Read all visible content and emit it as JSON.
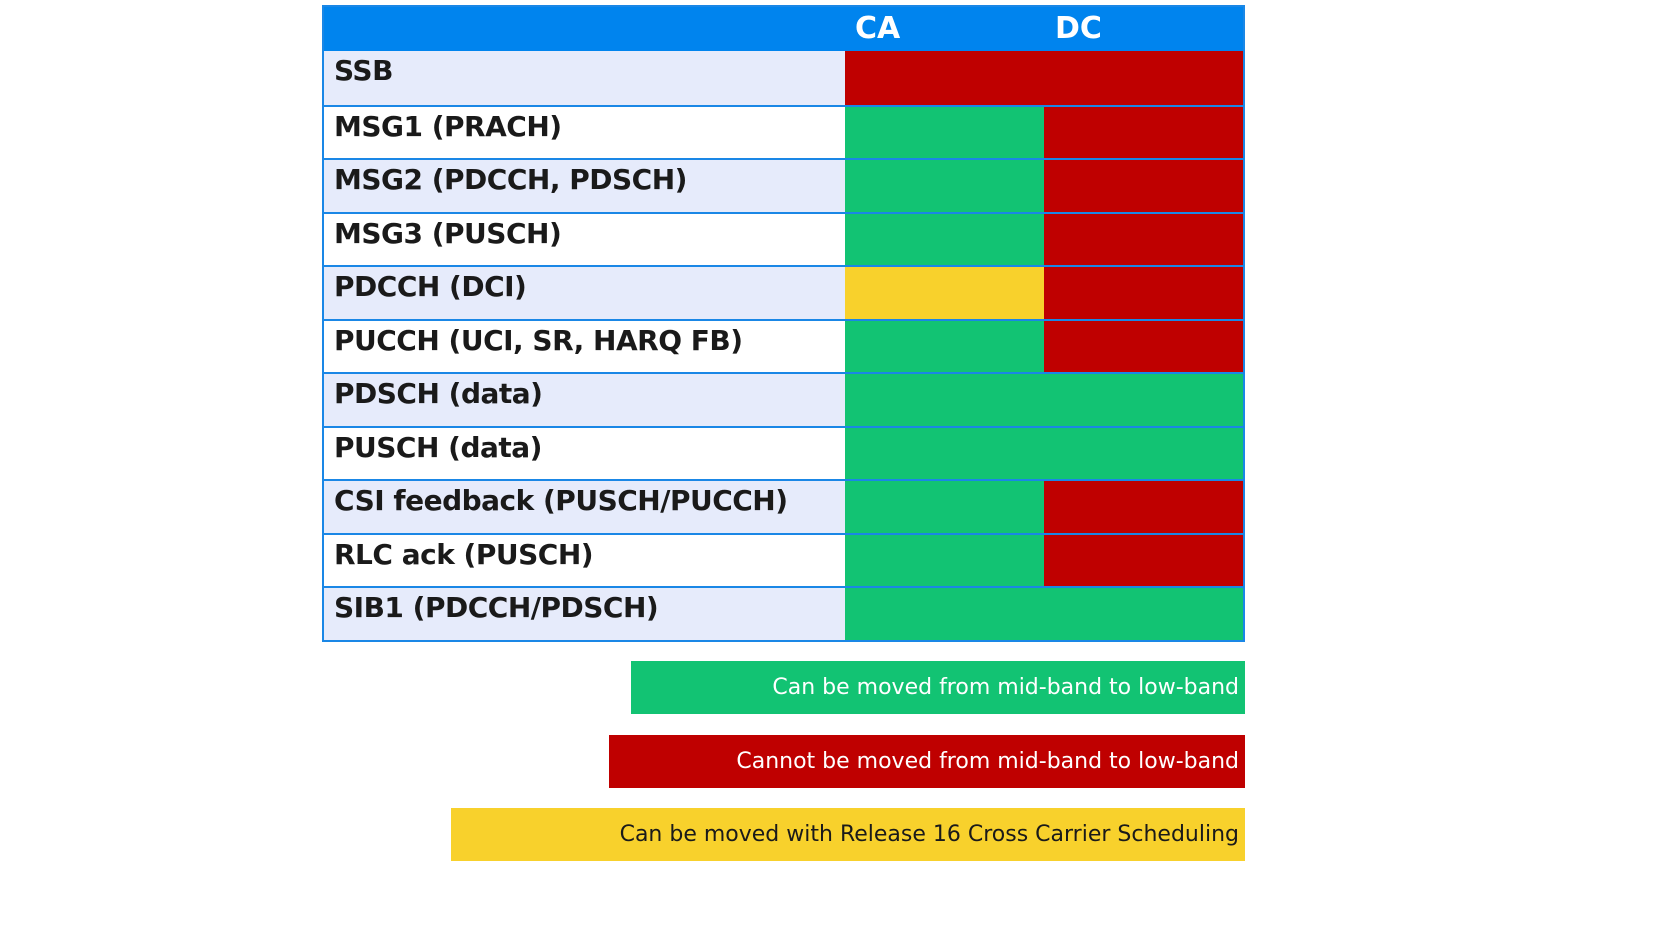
{
  "colors": {
    "header": "#0084ee",
    "border": "#1a87e6",
    "green": "#12c373",
    "red": "#bf0000",
    "yellow": "#f8d12c",
    "row_alt": "#e6ebfb"
  },
  "header": {
    "col_ca": "CA",
    "col_dc": "DC"
  },
  "rows": [
    {
      "label": "SSB",
      "ca": "red",
      "dc": "red",
      "merged": true
    },
    {
      "label": "MSG1 (PRACH)",
      "ca": "green",
      "dc": "red"
    },
    {
      "label": "MSG2 (PDCCH, PDSCH)",
      "ca": "green",
      "dc": "red"
    },
    {
      "label": "MSG3 (PUSCH)",
      "ca": "green",
      "dc": "red"
    },
    {
      "label": "PDCCH (DCI)",
      "ca": "yellow",
      "dc": "red"
    },
    {
      "label": "PUCCH (UCI, SR, HARQ FB)",
      "ca": "green",
      "dc": "red"
    },
    {
      "label": "PDSCH (data)",
      "ca": "green",
      "dc": "green",
      "merged": true
    },
    {
      "label": "PUSCH (data)",
      "ca": "green",
      "dc": "green",
      "merged": true
    },
    {
      "label": "CSI feedback (PUSCH/PUCCH)",
      "ca": "green",
      "dc": "red"
    },
    {
      "label": "RLC ack (PUSCH)",
      "ca": "green",
      "dc": "red"
    },
    {
      "label": "SIB1 (PDCCH/PDSCH)",
      "ca": "green",
      "dc": "green",
      "merged": true
    }
  ],
  "legend": [
    {
      "color": "green",
      "text": "Can be moved from mid-band to low-band"
    },
    {
      "color": "red",
      "text": "Cannot be moved from mid-band to low-band"
    },
    {
      "color": "yellow",
      "text": "Can be moved with Release 16 Cross Carrier Scheduling"
    }
  ]
}
